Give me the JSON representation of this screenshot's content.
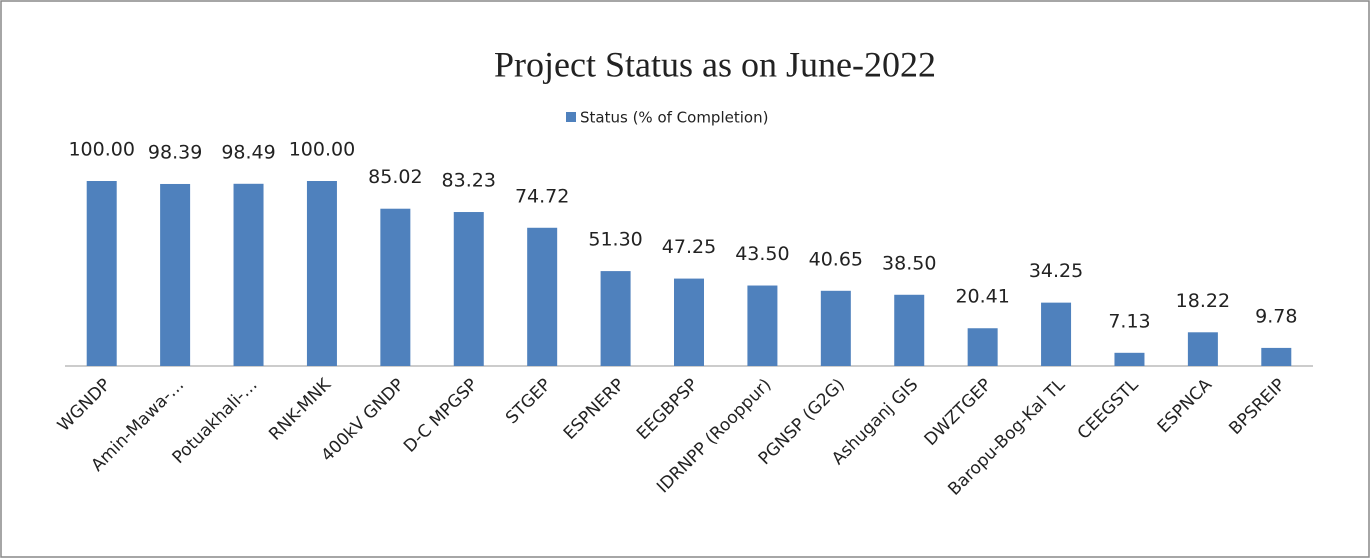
{
  "chart_data": {
    "type": "bar",
    "title": "Project Status as on June-2022",
    "categories": [
      "WGNDP",
      "Amin-Mawa-…",
      "Potuakhali-…",
      "RNK-MNK",
      "400kV GNDP",
      "D-C MPGSP",
      "STGEP",
      "ESPNERP",
      "EEGBPSP",
      "IDRNPP (Rooppur)",
      "PGNSP (G2G)",
      "Ashuganj  GIS",
      "DWZTGEP",
      "Baropu-Bog-Kal  TL",
      "CEEGSTL",
      "ESPNCA",
      "BPSREIP"
    ],
    "series": [
      {
        "name": "Status (% of Completion)",
        "color": "#4f81bd",
        "values": [
          100,
          98.39,
          98.49,
          100,
          85.02,
          83.23,
          74.72,
          51.3,
          47.25,
          43.5,
          40.65,
          38.5,
          20.41,
          34.25,
          7.13,
          18.22,
          9.78
        ],
        "value_labels": [
          "100.00",
          "98.39",
          "98.49",
          "100.00",
          "85.02",
          "83.23",
          "74.72",
          "51.30",
          "47.25",
          "43.50",
          "40.65",
          "38.50",
          "20.41",
          "34.25",
          "7.13",
          "18.22",
          "9.78"
        ]
      }
    ],
    "ylim": [
      0,
      100
    ],
    "legend": "top"
  }
}
